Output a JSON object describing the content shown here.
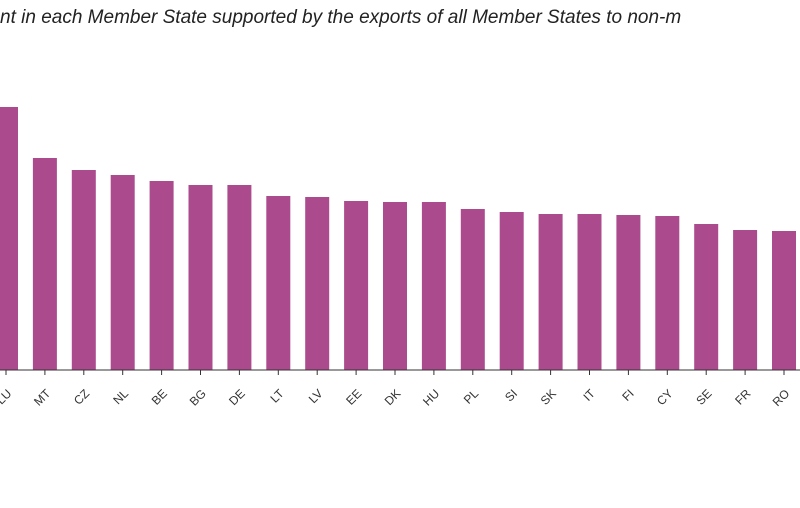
{
  "chart_data": {
    "type": "bar",
    "title": "nt in each Member State supported by the exports of all Member States to non-m",
    "categories": [
      "LU",
      "MT",
      "CZ",
      "NL",
      "BE",
      "BG",
      "DE",
      "LT",
      "LV",
      "EE",
      "DK",
      "HU",
      "PL",
      "SI",
      "SK",
      "IT",
      "FI",
      "CY",
      "SE",
      "FR",
      "RO"
    ],
    "values": [
      26.3,
      21.2,
      20.0,
      19.5,
      18.9,
      18.5,
      18.5,
      17.4,
      17.3,
      16.9,
      16.8,
      16.8,
      16.1,
      15.8,
      15.6,
      15.6,
      15.5,
      15.4,
      14.6,
      14.0,
      13.9
    ],
    "color": "#ab4a8d",
    "ylim": [
      0,
      30
    ]
  }
}
